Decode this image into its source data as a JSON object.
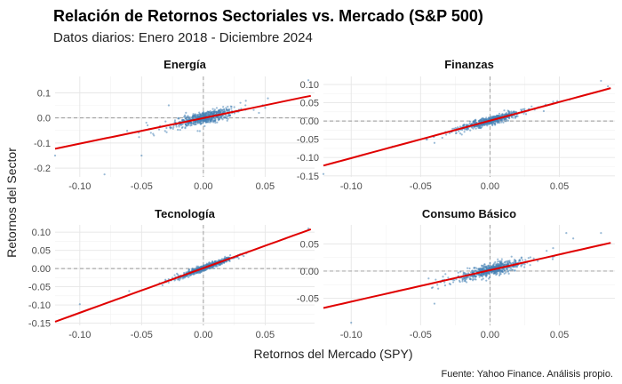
{
  "chart_data": [
    {
      "type": "scatter",
      "title": "Energía",
      "x_ticks": [
        -0.1,
        -0.05,
        0.0,
        0.05
      ],
      "x_tick_labels": [
        "-0.10",
        "-0.05",
        "0.00",
        "0.05"
      ],
      "y_ticks": [
        -0.2,
        -0.1,
        0.0,
        0.1
      ],
      "y_tick_labels": [
        "-0.2",
        "-0.1",
        "0.0",
        "0.1"
      ],
      "xlim": [
        -0.12,
        0.09
      ],
      "ylim": [
        -0.235,
        0.165
      ],
      "regression": {
        "x": [
          -0.12,
          0.087
        ],
        "y": [
          -0.123,
          0.088
        ]
      },
      "cloud_sd": 0.022,
      "outliers": [
        [
          -0.12,
          -0.15
        ],
        [
          -0.08,
          -0.225
        ],
        [
          -0.05,
          -0.15
        ],
        [
          0.085,
          0.15
        ],
        [
          -0.04,
          -0.07
        ],
        [
          0.03,
          0.06
        ],
        [
          -0.028,
          0.05
        ],
        [
          0.045,
          0.02
        ]
      ]
    },
    {
      "type": "scatter",
      "title": "Finanzas",
      "x_ticks": [
        -0.1,
        -0.05,
        0.0,
        0.05
      ],
      "x_tick_labels": [
        "-0.10",
        "-0.05",
        "0.00",
        "0.05"
      ],
      "y_ticks": [
        -0.15,
        -0.1,
        -0.05,
        0.0,
        0.05,
        0.1
      ],
      "y_tick_labels": [
        "-0.15",
        "-0.10",
        "-0.05",
        "0.00",
        "0.05",
        "0.10"
      ],
      "xlim": [
        -0.12,
        0.09
      ],
      "ylim": [
        -0.153,
        0.122
      ],
      "regression": {
        "x": [
          -0.12,
          0.087
        ],
        "y": [
          -0.122,
          0.09
        ]
      },
      "cloud_sd": 0.01,
      "outliers": [
        [
          -0.12,
          -0.145
        ],
        [
          0.08,
          0.11
        ],
        [
          0.085,
          0.095
        ],
        [
          -0.04,
          -0.06
        ],
        [
          0.03,
          0.04
        ],
        [
          -0.07,
          -0.07
        ]
      ]
    },
    {
      "type": "scatter",
      "title": "Tecnología",
      "x_ticks": [
        -0.1,
        -0.05,
        0.0,
        0.05
      ],
      "x_tick_labels": [
        "-0.10",
        "-0.05",
        "0.00",
        "0.05"
      ],
      "y_ticks": [
        -0.15,
        -0.1,
        -0.05,
        0.0,
        0.05,
        0.1
      ],
      "y_tick_labels": [
        "-0.15",
        "-0.10",
        "-0.05",
        "0.00",
        "0.05",
        "0.10"
      ],
      "xlim": [
        -0.12,
        0.09
      ],
      "ylim": [
        -0.156,
        0.12
      ],
      "regression": {
        "x": [
          -0.12,
          0.087
        ],
        "y": [
          -0.146,
          0.108
        ]
      },
      "cloud_sd": 0.007,
      "outliers": [
        [
          -0.1,
          -0.098
        ],
        [
          0.085,
          0.11
        ],
        [
          -0.06,
          -0.062
        ]
      ]
    },
    {
      "type": "scatter",
      "title": "Consumo Básico",
      "x_ticks": [
        -0.1,
        -0.05,
        0.0,
        0.05
      ],
      "x_tick_labels": [
        "-0.10",
        "-0.05",
        "0.00",
        "0.05"
      ],
      "y_ticks": [
        -0.05,
        0.0,
        0.05
      ],
      "y_tick_labels": [
        "-0.05",
        "0.00",
        "0.05"
      ],
      "xlim": [
        -0.12,
        0.09
      ],
      "ylim": [
        -0.1,
        0.085
      ],
      "regression": {
        "x": [
          -0.12,
          0.087
        ],
        "y": [
          -0.068,
          0.052
        ]
      },
      "cloud_sd": 0.01,
      "outliers": [
        [
          -0.1,
          -0.095
        ],
        [
          0.055,
          0.07
        ],
        [
          0.08,
          0.07
        ],
        [
          0.06,
          0.06
        ],
        [
          -0.04,
          -0.06
        ]
      ]
    }
  ],
  "title": "Relación de Retornos Sectoriales vs. Mercado (S&P 500)",
  "subtitle": "Datos diarios: Enero 2018 - Diciembre 2024",
  "xlabel": "Retornos del Mercado (SPY)",
  "ylabel": "Retornos del Sector",
  "caption": "Fuente: Yahoo Finance. Análisis propio.",
  "colors": {
    "points": "#4682b4",
    "regression": "#e00000",
    "zero_line": "#999999"
  }
}
